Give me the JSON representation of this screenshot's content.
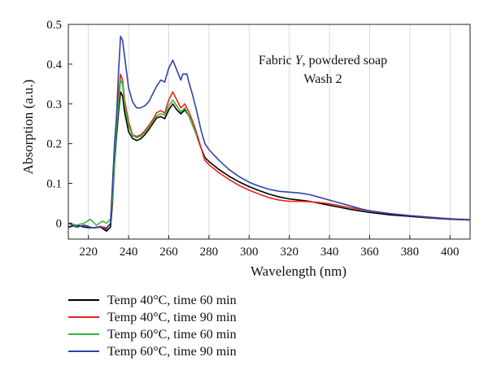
{
  "chart_data": {
    "type": "line",
    "title": "",
    "xlabel": "Wavelength (nm)",
    "ylabel": "Absorption (a.u.)",
    "xlim": [
      210,
      410
    ],
    "ylim": [
      -0.04,
      0.5
    ],
    "xticks": [
      220,
      240,
      260,
      280,
      300,
      320,
      340,
      360,
      380,
      400
    ],
    "yticks": [
      0,
      0.1,
      0.2,
      0.3,
      0.4,
      0.5
    ],
    "ytick_labels": [
      "0",
      "0.1",
      "0.2",
      "0.3",
      "0.4",
      "0.5"
    ],
    "grid": "vertical",
    "legend_position": "below",
    "annotation": {
      "line1_pre": "Fabric ",
      "line1_italic": "Y",
      "line1_post": ", powdered soap",
      "line2": "Wash 2"
    },
    "series": [
      {
        "name": "Temp 40°C, time 60 min",
        "color": "#000000",
        "points": [
          [
            210,
            -0.01
          ],
          [
            214,
            -0.005
          ],
          [
            218,
            -0.01
          ],
          [
            222,
            -0.012
          ],
          [
            226,
            -0.01
          ],
          [
            229,
            -0.02
          ],
          [
            231,
            -0.01
          ],
          [
            232,
            0.05
          ],
          [
            233,
            0.15
          ],
          [
            234,
            0.22
          ],
          [
            235,
            0.28
          ],
          [
            236,
            0.33
          ],
          [
            237,
            0.32
          ],
          [
            238,
            0.28
          ],
          [
            240,
            0.23
          ],
          [
            242,
            0.213
          ],
          [
            244,
            0.208
          ],
          [
            246,
            0.212
          ],
          [
            248,
            0.222
          ],
          [
            250,
            0.235
          ],
          [
            252,
            0.25
          ],
          [
            254,
            0.265
          ],
          [
            256,
            0.268
          ],
          [
            258,
            0.263
          ],
          [
            260,
            0.285
          ],
          [
            262,
            0.3
          ],
          [
            264,
            0.285
          ],
          [
            266,
            0.275
          ],
          [
            268,
            0.285
          ],
          [
            270,
            0.27
          ],
          [
            272,
            0.245
          ],
          [
            274,
            0.22
          ],
          [
            276,
            0.19
          ],
          [
            278,
            0.165
          ],
          [
            280,
            0.155
          ],
          [
            285,
            0.135
          ],
          [
            290,
            0.118
          ],
          [
            295,
            0.104
          ],
          [
            300,
            0.092
          ],
          [
            305,
            0.082
          ],
          [
            310,
            0.073
          ],
          [
            315,
            0.066
          ],
          [
            320,
            0.061
          ],
          [
            325,
            0.058
          ],
          [
            330,
            0.055
          ],
          [
            335,
            0.05
          ],
          [
            340,
            0.045
          ],
          [
            345,
            0.04
          ],
          [
            350,
            0.035
          ],
          [
            355,
            0.031
          ],
          [
            360,
            0.027
          ],
          [
            370,
            0.021
          ],
          [
            380,
            0.017
          ],
          [
            390,
            0.013
          ],
          [
            400,
            0.01
          ],
          [
            410,
            0.008
          ]
        ]
      },
      {
        "name": "Temp 40°C, time 90 min",
        "color": "#e8231c",
        "points": [
          [
            210,
            0.0
          ],
          [
            214,
            -0.01
          ],
          [
            218,
            -0.005
          ],
          [
            222,
            -0.012
          ],
          [
            226,
            -0.008
          ],
          [
            229,
            -0.012
          ],
          [
            231,
            0.0
          ],
          [
            232,
            0.06
          ],
          [
            233,
            0.17
          ],
          [
            234,
            0.25
          ],
          [
            235,
            0.32
          ],
          [
            236,
            0.375
          ],
          [
            237,
            0.36
          ],
          [
            238,
            0.31
          ],
          [
            240,
            0.255
          ],
          [
            242,
            0.222
          ],
          [
            244,
            0.218
          ],
          [
            246,
            0.222
          ],
          [
            248,
            0.232
          ],
          [
            250,
            0.245
          ],
          [
            252,
            0.26
          ],
          [
            254,
            0.278
          ],
          [
            256,
            0.283
          ],
          [
            258,
            0.277
          ],
          [
            260,
            0.31
          ],
          [
            262,
            0.33
          ],
          [
            264,
            0.31
          ],
          [
            266,
            0.29
          ],
          [
            268,
            0.3
          ],
          [
            270,
            0.28
          ],
          [
            272,
            0.255
          ],
          [
            274,
            0.225
          ],
          [
            276,
            0.19
          ],
          [
            278,
            0.158
          ],
          [
            280,
            0.147
          ],
          [
            285,
            0.127
          ],
          [
            290,
            0.11
          ],
          [
            295,
            0.095
          ],
          [
            300,
            0.083
          ],
          [
            305,
            0.073
          ],
          [
            310,
            0.064
          ],
          [
            315,
            0.058
          ],
          [
            320,
            0.055
          ],
          [
            325,
            0.055
          ],
          [
            330,
            0.054
          ],
          [
            335,
            0.052
          ],
          [
            340,
            0.049
          ],
          [
            345,
            0.044
          ],
          [
            350,
            0.039
          ],
          [
            355,
            0.035
          ],
          [
            360,
            0.031
          ],
          [
            370,
            0.024
          ],
          [
            380,
            0.019
          ],
          [
            390,
            0.015
          ],
          [
            400,
            0.011
          ],
          [
            410,
            0.008
          ]
        ]
      },
      {
        "name": "Temp 60°C, time 60 min",
        "color": "#3cb43c",
        "points": [
          [
            210,
            0.0
          ],
          [
            214,
            -0.005
          ],
          [
            218,
            0.0
          ],
          [
            221,
            0.01
          ],
          [
            224,
            -0.005
          ],
          [
            227,
            0.005
          ],
          [
            229,
            0.0
          ],
          [
            231,
            0.01
          ],
          [
            232,
            0.06
          ],
          [
            233,
            0.16
          ],
          [
            234,
            0.24
          ],
          [
            235,
            0.3
          ],
          [
            236,
            0.36
          ],
          [
            237,
            0.35
          ],
          [
            238,
            0.3
          ],
          [
            240,
            0.245
          ],
          [
            242,
            0.22
          ],
          [
            244,
            0.215
          ],
          [
            246,
            0.218
          ],
          [
            248,
            0.228
          ],
          [
            250,
            0.24
          ],
          [
            252,
            0.255
          ],
          [
            254,
            0.27
          ],
          [
            256,
            0.275
          ],
          [
            258,
            0.272
          ],
          [
            260,
            0.295
          ],
          [
            262,
            0.31
          ],
          [
            264,
            0.295
          ],
          [
            266,
            0.28
          ],
          [
            268,
            0.29
          ],
          [
            270,
            0.27
          ],
          [
            272,
            0.245
          ],
          [
            274,
            0.218
          ]
        ]
      },
      {
        "name": "Temp 60°C, time 90 min",
        "color": "#2e43a8",
        "points": [
          [
            210,
            0.0
          ],
          [
            214,
            -0.01
          ],
          [
            218,
            -0.005
          ],
          [
            222,
            -0.012
          ],
          [
            226,
            -0.01
          ],
          [
            229,
            -0.015
          ],
          [
            231,
            0.0
          ],
          [
            232,
            0.1
          ],
          [
            233,
            0.2
          ],
          [
            234,
            0.27
          ],
          [
            235,
            0.38
          ],
          [
            236,
            0.47
          ],
          [
            237,
            0.46
          ],
          [
            238,
            0.42
          ],
          [
            240,
            0.34
          ],
          [
            242,
            0.305
          ],
          [
            244,
            0.29
          ],
          [
            246,
            0.29
          ],
          [
            248,
            0.295
          ],
          [
            250,
            0.305
          ],
          [
            252,
            0.325
          ],
          [
            254,
            0.345
          ],
          [
            256,
            0.36
          ],
          [
            258,
            0.355
          ],
          [
            260,
            0.39
          ],
          [
            262,
            0.41
          ],
          [
            264,
            0.385
          ],
          [
            266,
            0.36
          ],
          [
            267,
            0.375
          ],
          [
            269,
            0.375
          ],
          [
            270,
            0.355
          ],
          [
            272,
            0.32
          ],
          [
            274,
            0.28
          ],
          [
            276,
            0.235
          ],
          [
            278,
            0.2
          ],
          [
            280,
            0.185
          ],
          [
            285,
            0.158
          ],
          [
            290,
            0.135
          ],
          [
            295,
            0.117
          ],
          [
            300,
            0.103
          ],
          [
            305,
            0.093
          ],
          [
            310,
            0.085
          ],
          [
            315,
            0.08
          ],
          [
            320,
            0.078
          ],
          [
            325,
            0.076
          ],
          [
            330,
            0.072
          ],
          [
            335,
            0.065
          ],
          [
            340,
            0.058
          ],
          [
            345,
            0.051
          ],
          [
            350,
            0.044
          ],
          [
            355,
            0.037
          ],
          [
            360,
            0.031
          ],
          [
            370,
            0.024
          ],
          [
            380,
            0.019
          ],
          [
            390,
            0.014
          ],
          [
            400,
            0.011
          ],
          [
            410,
            0.009
          ]
        ]
      }
    ]
  }
}
